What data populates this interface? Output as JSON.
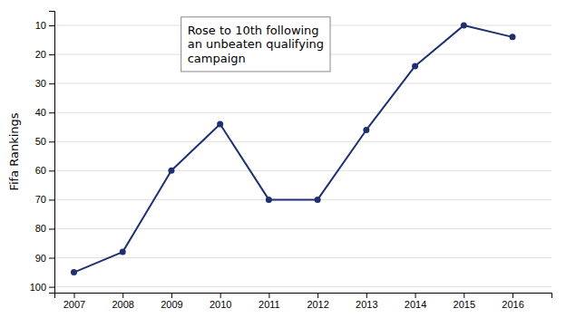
{
  "chart_data": {
    "type": "line",
    "x": [
      2007,
      2008,
      2009,
      2010,
      2011,
      2012,
      2013,
      2014,
      2015,
      2016
    ],
    "values": [
      95,
      88,
      60,
      44,
      70,
      70,
      46,
      24,
      10,
      14
    ],
    "color": "#1f3070",
    "marker": "circle",
    "ylabel": "Fifa Rankings",
    "xlim": [
      2006.6,
      2016.8
    ],
    "ylim": [
      102,
      5
    ],
    "xticks": [
      2007,
      2008,
      2009,
      2010,
      2011,
      2012,
      2013,
      2014,
      2015,
      2016
    ],
    "yticks": [
      10,
      20,
      30,
      40,
      50,
      60,
      70,
      80,
      90,
      100
    ],
    "grid": true,
    "annotations": [
      {
        "text": "Rose to 10th following\nan unbeaten qualifying\ncampaign",
        "x": 2009.2,
        "y": 7
      }
    ]
  }
}
